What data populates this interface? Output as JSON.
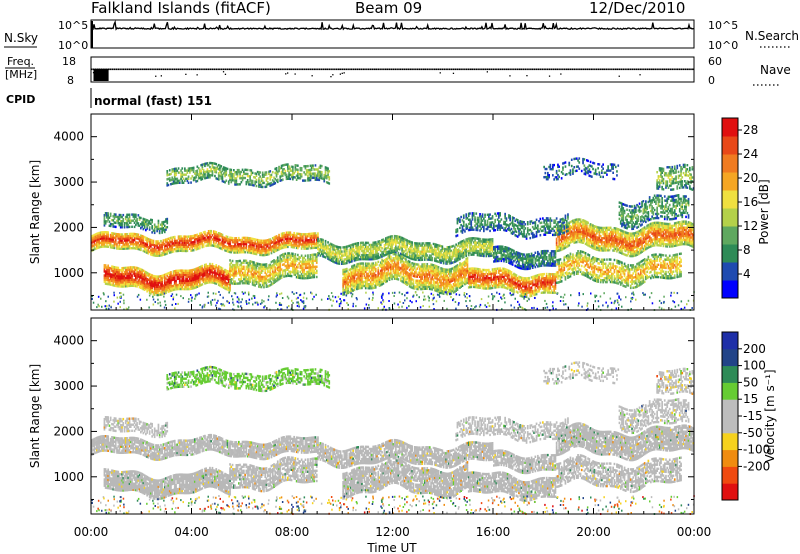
{
  "header": {
    "radar": "Falkland Islands (fitACF)",
    "beam": "Beam 09",
    "date": "12/Dec/2010"
  },
  "noise_panel": {
    "left_label": "N.Sky",
    "right_label": "N.Search",
    "right_ticks": [
      "10^5",
      "10^0"
    ],
    "left_ticks": [
      "10^5",
      "10^0"
    ]
  },
  "freq_panel": {
    "left_label_1": "Freq.",
    "left_label_2": "[MHz]",
    "left_ticks": [
      "18",
      "8"
    ],
    "right_ticks": [
      "60",
      "0"
    ],
    "right_label": "Nave"
  },
  "cpid": {
    "label": "CPID",
    "value": "normal (fast) 151"
  },
  "time_axis": {
    "ticks": [
      "00:00",
      "04:00",
      "08:00",
      "12:00",
      "16:00",
      "20:00",
      "00:00"
    ],
    "label": "Time UT"
  },
  "range_axis": {
    "label": "Slant Range [km]",
    "ticks": [
      "1000",
      "2000",
      "3000",
      "4000"
    ]
  },
  "colors": {
    "power": [
      "#0000ff",
      "#1f4bb0",
      "#2e8b57",
      "#5fa85f",
      "#b4d14a",
      "#f0e040",
      "#f5a623",
      "#f07b20",
      "#e84818",
      "#e01010"
    ],
    "velocity": [
      "#e01010",
      "#f04a10",
      "#f08c10",
      "#f6d21e",
      "#bdbdbd",
      "#bdbdbd",
      "#66cc33",
      "#2e8b57",
      "#224488",
      "#1e2fa8"
    ],
    "ground_scatter": "#b8b8b8"
  },
  "power_colorbar": {
    "label": "Power [dB]",
    "ticks": [
      "4",
      "8",
      "12",
      "16",
      "20",
      "24",
      "28"
    ]
  },
  "velocity_colorbar": {
    "label": "Velocity [m s⁻¹]",
    "ticks": [
      "200",
      "100",
      "50",
      "15",
      "-15",
      "-50",
      "-100",
      "-200"
    ]
  },
  "chart_data": {
    "type": "heatmap",
    "x_range_hours": [
      0,
      24
    ],
    "y_range_km": [
      180,
      4500
    ],
    "power_range_db": [
      0,
      30
    ],
    "velocity_range_ms": [
      -250,
      250
    ],
    "regions": [
      {
        "t0": 0.0,
        "t1": 9.0,
        "r_center": 1650,
        "r_half": 180,
        "power": 24,
        "velocity": -10,
        "density": 0.85
      },
      {
        "t0": 9.0,
        "t1": 16.0,
        "r_center": 1500,
        "r_half": 200,
        "power": 14,
        "velocity": 5,
        "density": 0.8
      },
      {
        "t0": 16.0,
        "t1": 18.5,
        "r_center": 1350,
        "r_half": 180,
        "power": 8,
        "velocity": 8,
        "density": 0.75
      },
      {
        "t0": 18.5,
        "t1": 24.0,
        "r_center": 1750,
        "r_half": 250,
        "power": 22,
        "velocity": -5,
        "density": 0.85
      },
      {
        "t0": 0.5,
        "t1": 5.5,
        "r_center": 850,
        "r_half": 220,
        "power": 26,
        "velocity": 0,
        "density": 0.9
      },
      {
        "t0": 5.5,
        "t1": 9.0,
        "r_center": 1050,
        "r_half": 250,
        "power": 18,
        "velocity": -10,
        "density": 0.7
      },
      {
        "t0": 10.0,
        "t1": 15.0,
        "r_center": 950,
        "r_half": 280,
        "power": 20,
        "velocity": -5,
        "density": 0.8
      },
      {
        "t0": 15.0,
        "t1": 18.5,
        "r_center": 800,
        "r_half": 220,
        "power": 24,
        "velocity": 5,
        "density": 0.8
      },
      {
        "t0": 18.5,
        "t1": 23.5,
        "r_center": 1050,
        "r_half": 250,
        "power": 18,
        "velocity": -8,
        "density": 0.6
      },
      {
        "t0": 3.0,
        "t1": 9.5,
        "r_center": 3150,
        "r_half": 180,
        "power": 12,
        "velocity": 60,
        "density": 0.55
      },
      {
        "t0": 0.5,
        "t1": 3.0,
        "r_center": 2100,
        "r_half": 150,
        "power": 10,
        "velocity": -20,
        "density": 0.5
      },
      {
        "t0": 14.5,
        "t1": 19.0,
        "r_center": 2050,
        "r_half": 200,
        "power": 8,
        "velocity": 20,
        "density": 0.45
      },
      {
        "t0": 21.0,
        "t1": 23.8,
        "r_center": 2350,
        "r_half": 250,
        "power": 10,
        "velocity": 30,
        "density": 0.5
      },
      {
        "t0": 22.5,
        "t1": 24.0,
        "r_center": 3000,
        "r_half": 250,
        "power": 12,
        "velocity": -40,
        "density": 0.45
      },
      {
        "t0": 18.0,
        "t1": 21.0,
        "r_center": 3250,
        "r_half": 180,
        "power": 6,
        "velocity": 20,
        "density": 0.3
      }
    ],
    "noise_series_level": "10^4",
    "frequency_mhz": 10
  }
}
